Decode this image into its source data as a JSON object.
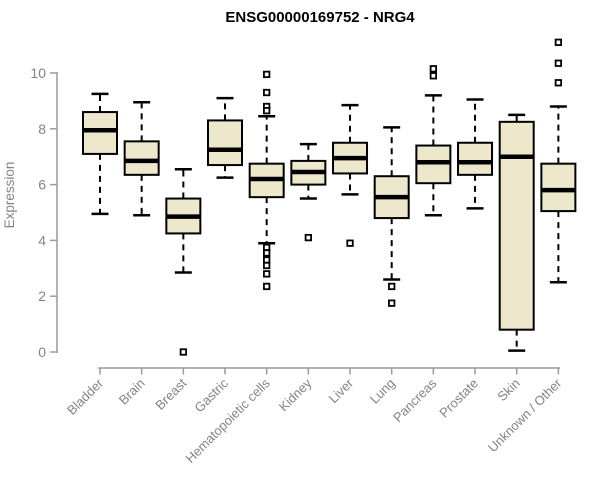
{
  "title": "ENSG00000169752 - NRG4",
  "chart_data": {
    "type": "boxplot",
    "title": "ENSG00000169752 - NRG4",
    "xlabel": "",
    "ylabel": "Expression",
    "ylim": [
      0,
      10
    ],
    "yticks": [
      0,
      2,
      4,
      6,
      8,
      10
    ],
    "grid": false,
    "legend": "none",
    "categories": [
      "Bladder",
      "Brain",
      "Breast",
      "Gastric",
      "Hematopoietic cells",
      "Kidney",
      "Liver",
      "Lung",
      "Pancreas",
      "Prostate",
      "Skin",
      "Unknown / Other"
    ],
    "series": [
      {
        "name": "Bladder",
        "whisker_low": 4.95,
        "q1": 7.1,
        "median": 7.95,
        "q3": 8.6,
        "whisker_high": 9.25,
        "outliers": []
      },
      {
        "name": "Brain",
        "whisker_low": 4.9,
        "q1": 6.35,
        "median": 6.85,
        "q3": 7.55,
        "whisker_high": 8.95,
        "outliers": []
      },
      {
        "name": "Breast",
        "whisker_low": 2.85,
        "q1": 4.25,
        "median": 4.85,
        "q3": 5.5,
        "whisker_high": 6.55,
        "outliers": [
          0.0
        ]
      },
      {
        "name": "Gastric",
        "whisker_low": 6.25,
        "q1": 6.7,
        "median": 7.25,
        "q3": 8.3,
        "whisker_high": 9.1,
        "outliers": []
      },
      {
        "name": "Hematopoietic cells",
        "whisker_low": 3.9,
        "q1": 5.55,
        "median": 6.2,
        "q3": 6.75,
        "whisker_high": 8.45,
        "outliers": [
          9.95,
          9.3,
          8.8,
          8.65,
          3.75,
          3.55,
          3.3,
          3.1,
          2.8,
          2.35
        ]
      },
      {
        "name": "Kidney",
        "whisker_low": 5.5,
        "q1": 6.0,
        "median": 6.45,
        "q3": 6.85,
        "whisker_high": 7.45,
        "outliers": [
          4.1
        ]
      },
      {
        "name": "Liver",
        "whisker_low": 5.65,
        "q1": 6.4,
        "median": 6.95,
        "q3": 7.5,
        "whisker_high": 8.85,
        "outliers": [
          3.9
        ]
      },
      {
        "name": "Lung",
        "whisker_low": 2.6,
        "q1": 4.8,
        "median": 5.55,
        "q3": 6.3,
        "whisker_high": 8.05,
        "outliers": [
          2.35,
          1.75
        ]
      },
      {
        "name": "Pancreas",
        "whisker_low": 4.9,
        "q1": 6.05,
        "median": 6.8,
        "q3": 7.4,
        "whisker_high": 9.2,
        "outliers": [
          10.15,
          9.9
        ]
      },
      {
        "name": "Prostate",
        "whisker_low": 5.15,
        "q1": 6.35,
        "median": 6.8,
        "q3": 7.5,
        "whisker_high": 9.05,
        "outliers": []
      },
      {
        "name": "Skin",
        "whisker_low": 0.05,
        "q1": 0.8,
        "median": 7.0,
        "q3": 8.25,
        "whisker_high": 8.5,
        "outliers": []
      },
      {
        "name": "Unknown / Other",
        "whisker_low": 2.5,
        "q1": 5.05,
        "median": 5.8,
        "q3": 6.75,
        "whisker_high": 8.8,
        "outliers": [
          11.1,
          10.35,
          9.65
        ]
      }
    ],
    "colors": {
      "box_fill": "#EDE7CB",
      "box_border": "#000000",
      "median": "#000000",
      "whisker": "#000000",
      "outlier_border": "#000000",
      "axis_line": "#9A9A9A",
      "axis_text": "#848484",
      "title": "#000000",
      "background": "#FFFFFF"
    }
  }
}
